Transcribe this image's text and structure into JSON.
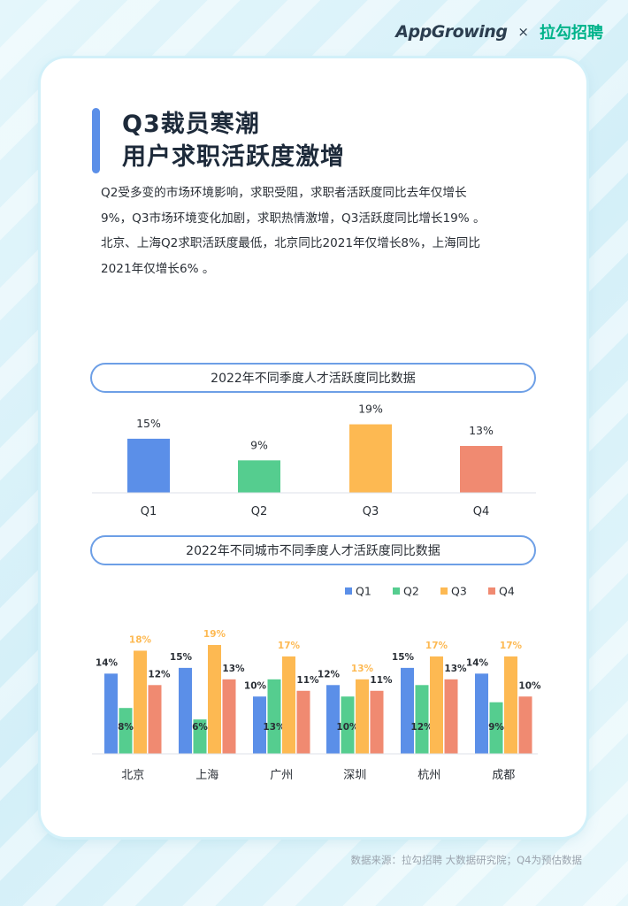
{
  "header": {
    "logo_left": "AppGrowing",
    "logo_sep": "×",
    "logo_right": "拉勾招聘"
  },
  "title": {
    "line1": "Q3裁员寒潮",
    "line2": "用户求职活跃度激增"
  },
  "description": [
    "Q2受多变的市场环境影响，求职受阻，求职者活跃度同比去年仅增长",
    "9%，Q3市场环境变化加剧，求职热情激增，Q3活跃度同比增长19% 。",
    "北京、上海Q2求职活跃度最低，北京同比2021年仅增长8%，上海同比",
    "2021年仅增长6% 。"
  ],
  "source": "数据来源：拉勾招聘 大数据研究院；Q4为预估数据",
  "colors": {
    "Q1": "#5b8fe8",
    "Q2": "#55cd8f",
    "Q3": "#fdb952",
    "Q4": "#f08a71",
    "axis": "#dde2e8",
    "text": "#2a2f36"
  },
  "chart_data": [
    {
      "type": "bar",
      "title": "2022年不同季度人才活跃度同比数据",
      "categories": [
        "Q1",
        "Q2",
        "Q3",
        "Q4"
      ],
      "values": [
        15,
        9,
        19,
        13
      ],
      "value_labels": [
        "15%",
        "9%",
        "19%",
        "13%"
      ],
      "colors": [
        "#5b8fe8",
        "#55cd8f",
        "#fdb952",
        "#f08a71"
      ],
      "ylim": [
        0,
        20
      ]
    },
    {
      "type": "bar",
      "title": "2022年不同城市不同季度人才活跃度同比数据",
      "categories": [
        "北京",
        "上海",
        "广州",
        "深圳",
        "杭州",
        "成都"
      ],
      "legend": [
        "Q1",
        "Q2",
        "Q3",
        "Q4"
      ],
      "legend_position": "top-right",
      "series": [
        {
          "name": "Q1",
          "color": "#5b8fe8",
          "values": [
            14,
            15,
            10,
            12,
            15,
            14
          ],
          "labels": [
            "14%",
            "15%",
            "10%",
            "12%",
            "15%",
            "14%"
          ]
        },
        {
          "name": "Q2",
          "color": "#55cd8f",
          "values": [
            8,
            6,
            13,
            10,
            12,
            9
          ],
          "labels": [
            "8%",
            "6%",
            "13%",
            "10%",
            "12%",
            "9%"
          ]
        },
        {
          "name": "Q3",
          "color": "#fdb952",
          "values": [
            18,
            19,
            17,
            13,
            17,
            17
          ],
          "labels": [
            "18%",
            "19%",
            "17%",
            "13%",
            "17%",
            "17%"
          ]
        },
        {
          "name": "Q4",
          "color": "#f08a71",
          "values": [
            12,
            13,
            11,
            11,
            13,
            10
          ],
          "labels": [
            "12%",
            "13%",
            "11%",
            "11%",
            "13%",
            "10%"
          ]
        }
      ],
      "ylim": [
        0,
        20
      ]
    }
  ]
}
